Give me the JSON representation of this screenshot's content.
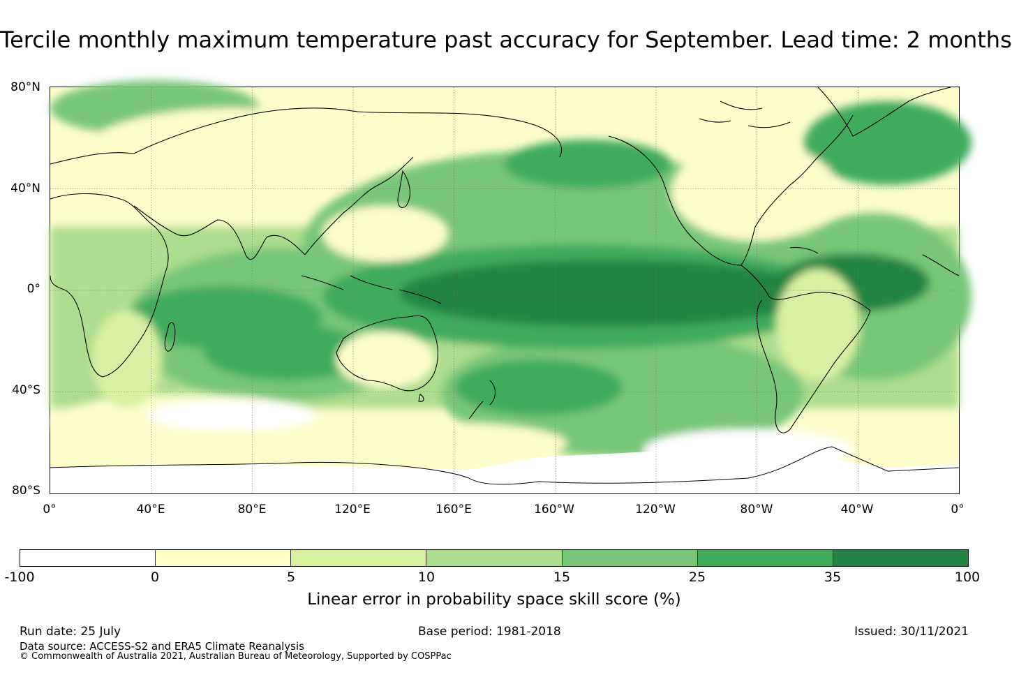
{
  "title": "Tercile monthly maximum temperature past accuracy for September. Lead time: 2 months",
  "map": {
    "lat_labels": [
      "80°N",
      "40°N",
      "0°",
      "40°S",
      "80°S"
    ],
    "lon_labels": [
      "0°",
      "40°E",
      "80°E",
      "120°E",
      "160°E",
      "160°W",
      "120°W",
      "80°W",
      "40°W",
      "0°"
    ],
    "extent": {
      "lon_range": [
        0,
        360
      ],
      "lat_range": [
        -80,
        80
      ]
    },
    "grid": true,
    "projection": "Plate Carrée, centred on 180°"
  },
  "colorbar": {
    "label": "Linear error in probability space skill score (%)",
    "ticks": [
      "-100",
      "0",
      "5",
      "10",
      "15",
      "25",
      "35",
      "100"
    ],
    "bins": [
      {
        "range": "-100 to 0",
        "color": "#ffffff"
      },
      {
        "range": "0 to 5",
        "color": "#ffffcc"
      },
      {
        "range": "5 to 10",
        "color": "#d9f0a3"
      },
      {
        "range": "10 to 15",
        "color": "#addd8e"
      },
      {
        "range": "15 to 25",
        "color": "#78c679"
      },
      {
        "range": "25 to 35",
        "color": "#41ab5d"
      },
      {
        "range": "35 to 100",
        "color": "#238443"
      }
    ]
  },
  "footer": {
    "run_date": "Run date: 25 July",
    "base_period": "Base period: 1981-2018",
    "issued": "Issued: 30/11/2021",
    "data_source": "Data source: ACCESS-S2 and ERA5 Climate Reanalysis",
    "copyright": "© Commonwealth of Australia 2021, Australian Bureau of Meteorology, Supported by COSPPac"
  }
}
